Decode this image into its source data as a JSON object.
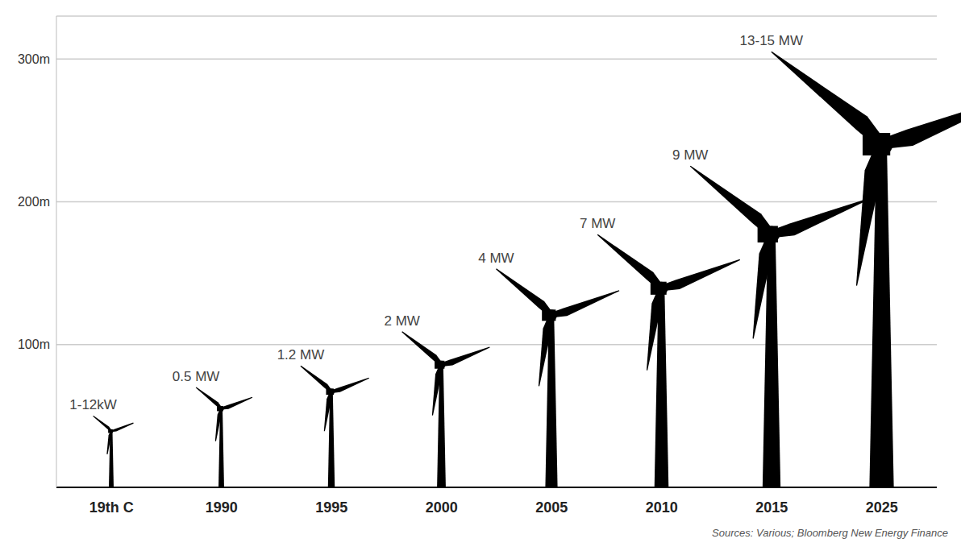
{
  "chart_data": {
    "type": "bar",
    "categories": [
      "19th C",
      "1990",
      "1995",
      "2000",
      "2005",
      "2010",
      "2015",
      "2025"
    ],
    "values": [
      50,
      70,
      85,
      109,
      153,
      177,
      225,
      305
    ],
    "annotations": [
      "1-12kW",
      "0.5 MW",
      "1.2 MW",
      "2 MW",
      "4 MW",
      "7 MW",
      "9 MW",
      "13-15 MW"
    ],
    "color": "#000000",
    "ylim": [
      0,
      330
    ],
    "yticks": [
      {
        "value": 100,
        "label": "100m"
      },
      {
        "value": 200,
        "label": "200m"
      },
      {
        "value": 300,
        "label": "300m"
      }
    ],
    "grid": true,
    "source": "Sources: Various; Bloomberg New Energy Finance"
  }
}
